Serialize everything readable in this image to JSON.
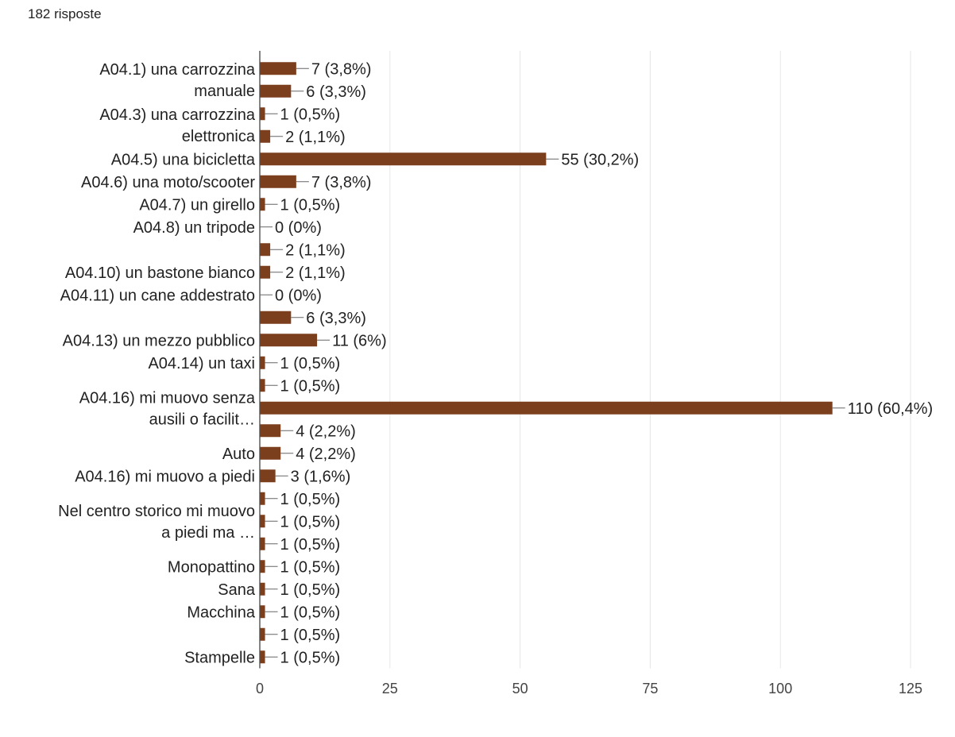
{
  "header": {
    "response_count": "182 risposte"
  },
  "chart_data": {
    "type": "bar",
    "orientation": "horizontal",
    "bar_color": "#7b3f1d",
    "grid": true,
    "xlim": [
      0,
      125
    ],
    "x_ticks": [
      0,
      25,
      50,
      75,
      100,
      125
    ],
    "category_labels": [
      {
        "row": 0.5,
        "lines": [
          "A04.1) una carrozzina",
          "manuale"
        ]
      },
      {
        "row": 2.5,
        "lines": [
          "A04.3) una carrozzina",
          "elettronica"
        ]
      },
      {
        "row": 4,
        "lines": [
          "A04.5) una bicicletta"
        ]
      },
      {
        "row": 5,
        "lines": [
          "A04.6) una moto/scooter"
        ]
      },
      {
        "row": 6,
        "lines": [
          "A04.7) un girello"
        ]
      },
      {
        "row": 7,
        "lines": [
          "A04.8) un tripode"
        ]
      },
      {
        "row": 9,
        "lines": [
          "A04.10) un bastone bianco"
        ]
      },
      {
        "row": 10,
        "lines": [
          "A04.11) un cane addestrato"
        ]
      },
      {
        "row": 12,
        "lines": [
          "A04.13) un mezzo pubblico"
        ]
      },
      {
        "row": 13,
        "lines": [
          "A04.14) un taxi"
        ]
      },
      {
        "row": 15,
        "lines": [
          "A04.16) mi muovo senza",
          "ausili o facilit…"
        ]
      },
      {
        "row": 17,
        "lines": [
          "Auto"
        ]
      },
      {
        "row": 18,
        "lines": [
          "A04.16) mi muovo a piedi"
        ]
      },
      {
        "row": 20,
        "lines": [
          "Nel centro storico mi muovo",
          "a piedi ma …"
        ]
      },
      {
        "row": 22,
        "lines": [
          "Monopattino"
        ]
      },
      {
        "row": 23,
        "lines": [
          "Sana"
        ]
      },
      {
        "row": 24,
        "lines": [
          "Macchina"
        ]
      },
      {
        "row": 26,
        "lines": [
          "Stampelle"
        ]
      }
    ],
    "values": [
      7,
      6,
      1,
      2,
      55,
      7,
      1,
      0,
      2,
      2,
      0,
      6,
      11,
      1,
      1,
      110,
      4,
      4,
      3,
      1,
      1,
      1,
      1,
      1,
      1,
      1,
      1
    ],
    "data_labels": [
      "7 (3,8%)",
      "6 (3,3%)",
      "1 (0,5%)",
      "2 (1,1%)",
      "55 (30,2%)",
      "7 (3,8%)",
      "1 (0,5%)",
      "0 (0%)",
      "2 (1,1%)",
      "2 (1,1%)",
      "0 (0%)",
      "6 (3,3%)",
      "11 (6%)",
      "1 (0,5%)",
      "1 (0,5%)",
      "110 (60,4%)",
      "4 (2,2%)",
      "4 (2,2%)",
      "3 (1,6%)",
      "1 (0,5%)",
      "1 (0,5%)",
      "1 (0,5%)",
      "1 (0,5%)",
      "1 (0,5%)",
      "1 (0,5%)",
      "1 (0,5%)",
      "1 (0,5%)"
    ]
  }
}
